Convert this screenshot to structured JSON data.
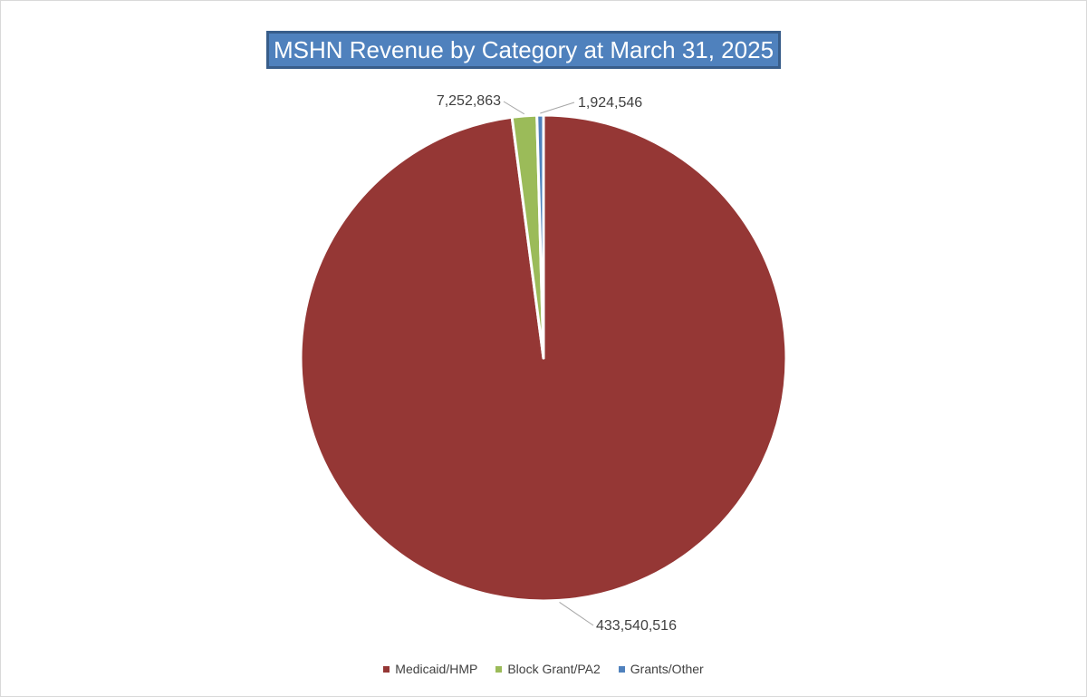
{
  "chart_data": {
    "type": "pie",
    "title": "MSHN Revenue by Category at March 31, 2025",
    "slices": [
      {
        "name": "Medicaid/HMP",
        "value": 433540516,
        "label": "433,540,516",
        "color": "#953735"
      },
      {
        "name": "Block Grant/PA2",
        "value": 7252863,
        "label": "7,252,863",
        "color": "#9bbb59"
      },
      {
        "name": "Grants/Other",
        "value": 1924546,
        "label": "1,924,546",
        "color": "#4f81bd"
      }
    ],
    "legend_position": "bottom"
  }
}
